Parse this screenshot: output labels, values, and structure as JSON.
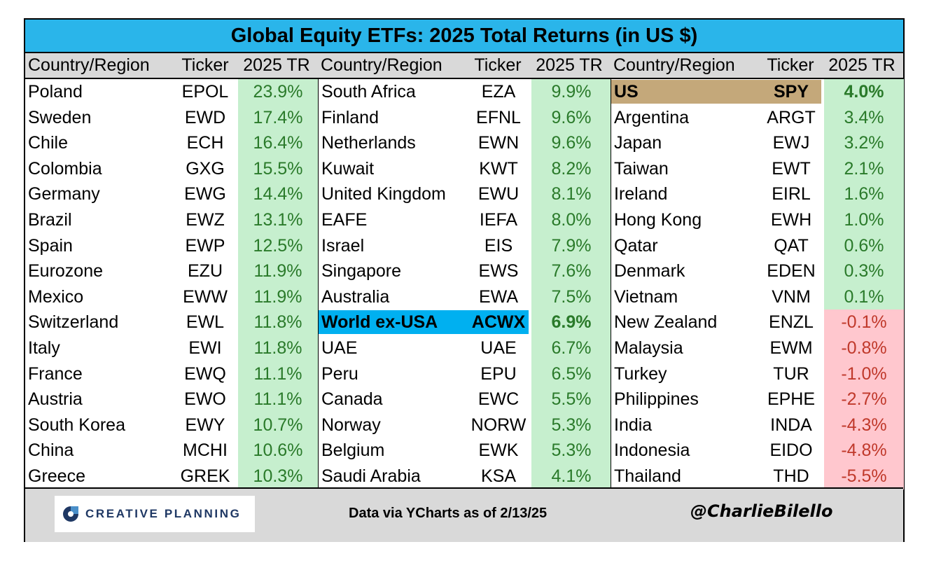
{
  "title": "Global Equity ETFs: 2025 Total Returns (in US $)",
  "headers": [
    "Country/Region",
    "Ticker",
    "2025 TR"
  ],
  "colors": {
    "title_bg": "#2ab5ea",
    "header_bg": "#d9d9d9",
    "positive_fill": "#c6efce",
    "positive_text": "#2a7a2a",
    "negative_fill": "#ffc7ce",
    "negative_text": "#c0392b",
    "us_highlight": "#c4a87a",
    "world_highlight": "#00b0f0"
  },
  "chart_data": {
    "type": "table",
    "columns": [
      "Country/Region",
      "Ticker",
      "2025 TR"
    ],
    "panels": [
      [
        {
          "country": "Poland",
          "ticker": "EPOL",
          "tr": "23.9%",
          "value": 23.9
        },
        {
          "country": "Sweden",
          "ticker": "EWD",
          "tr": "17.4%",
          "value": 17.4
        },
        {
          "country": "Chile",
          "ticker": "ECH",
          "tr": "16.4%",
          "value": 16.4
        },
        {
          "country": "Colombia",
          "ticker": "GXG",
          "tr": "15.5%",
          "value": 15.5
        },
        {
          "country": "Germany",
          "ticker": "EWG",
          "tr": "14.4%",
          "value": 14.4
        },
        {
          "country": "Brazil",
          "ticker": "EWZ",
          "tr": "13.1%",
          "value": 13.1
        },
        {
          "country": "Spain",
          "ticker": "EWP",
          "tr": "12.5%",
          "value": 12.5
        },
        {
          "country": "Eurozone",
          "ticker": "EZU",
          "tr": "11.9%",
          "value": 11.9
        },
        {
          "country": "Mexico",
          "ticker": "EWW",
          "tr": "11.9%",
          "value": 11.9
        },
        {
          "country": "Switzerland",
          "ticker": "EWL",
          "tr": "11.8%",
          "value": 11.8
        },
        {
          "country": "Italy",
          "ticker": "EWI",
          "tr": "11.8%",
          "value": 11.8
        },
        {
          "country": "France",
          "ticker": "EWQ",
          "tr": "11.1%",
          "value": 11.1
        },
        {
          "country": "Austria",
          "ticker": "EWO",
          "tr": "11.1%",
          "value": 11.1
        },
        {
          "country": "South Korea",
          "ticker": "EWY",
          "tr": "10.7%",
          "value": 10.7
        },
        {
          "country": "China",
          "ticker": "MCHI",
          "tr": "10.6%",
          "value": 10.6
        },
        {
          "country": "Greece",
          "ticker": "GREK",
          "tr": "10.3%",
          "value": 10.3
        }
      ],
      [
        {
          "country": "South Africa",
          "ticker": "EZA",
          "tr": "9.9%",
          "value": 9.9
        },
        {
          "country": "Finland",
          "ticker": "EFNL",
          "tr": "9.6%",
          "value": 9.6
        },
        {
          "country": "Netherlands",
          "ticker": "EWN",
          "tr": "9.6%",
          "value": 9.6
        },
        {
          "country": "Kuwait",
          "ticker": "KWT",
          "tr": "8.2%",
          "value": 8.2
        },
        {
          "country": "United Kingdom",
          "ticker": "EWU",
          "tr": "8.1%",
          "value": 8.1
        },
        {
          "country": "EAFE",
          "ticker": "IEFA",
          "tr": "8.0%",
          "value": 8.0
        },
        {
          "country": "Israel",
          "ticker": "EIS",
          "tr": "7.9%",
          "value": 7.9
        },
        {
          "country": "Singapore",
          "ticker": "EWS",
          "tr": "7.6%",
          "value": 7.6
        },
        {
          "country": "Australia",
          "ticker": "EWA",
          "tr": "7.5%",
          "value": 7.5
        },
        {
          "country": "World ex-USA",
          "ticker": "ACWX",
          "tr": "6.9%",
          "value": 6.9,
          "highlight": "world"
        },
        {
          "country": "UAE",
          "ticker": "UAE",
          "tr": "6.7%",
          "value": 6.7
        },
        {
          "country": "Peru",
          "ticker": "EPU",
          "tr": "6.5%",
          "value": 6.5
        },
        {
          "country": "Canada",
          "ticker": "EWC",
          "tr": "5.5%",
          "value": 5.5
        },
        {
          "country": "Norway",
          "ticker": "NORW",
          "tr": "5.3%",
          "value": 5.3
        },
        {
          "country": "Belgium",
          "ticker": "EWK",
          "tr": "5.3%",
          "value": 5.3
        },
        {
          "country": "Saudi Arabia",
          "ticker": "KSA",
          "tr": "4.1%",
          "value": 4.1
        }
      ],
      [
        {
          "country": "US",
          "ticker": "SPY",
          "tr": "4.0%",
          "value": 4.0,
          "highlight": "us"
        },
        {
          "country": "Argentina",
          "ticker": "ARGT",
          "tr": "3.4%",
          "value": 3.4
        },
        {
          "country": "Japan",
          "ticker": "EWJ",
          "tr": "3.2%",
          "value": 3.2
        },
        {
          "country": "Taiwan",
          "ticker": "EWT",
          "tr": "2.1%",
          "value": 2.1
        },
        {
          "country": "Ireland",
          "ticker": "EIRL",
          "tr": "1.6%",
          "value": 1.6
        },
        {
          "country": "Hong Kong",
          "ticker": "EWH",
          "tr": "1.0%",
          "value": 1.0
        },
        {
          "country": "Qatar",
          "ticker": "QAT",
          "tr": "0.6%",
          "value": 0.6
        },
        {
          "country": "Denmark",
          "ticker": "EDEN",
          "tr": "0.3%",
          "value": 0.3
        },
        {
          "country": "Vietnam",
          "ticker": "VNM",
          "tr": "0.1%",
          "value": 0.1
        },
        {
          "country": "New Zealand",
          "ticker": "ENZL",
          "tr": "-0.1%",
          "value": -0.1
        },
        {
          "country": "Malaysia",
          "ticker": "EWM",
          "tr": "-0.8%",
          "value": -0.8
        },
        {
          "country": "Turkey",
          "ticker": "TUR",
          "tr": "-1.0%",
          "value": -1.0
        },
        {
          "country": "Philippines",
          "ticker": "EPHE",
          "tr": "-2.7%",
          "value": -2.7
        },
        {
          "country": "India",
          "ticker": "INDA",
          "tr": "-4.3%",
          "value": -4.3
        },
        {
          "country": "Indonesia",
          "ticker": "EIDO",
          "tr": "-4.8%",
          "value": -4.8
        },
        {
          "country": "Thailand",
          "ticker": "THD",
          "tr": "-5.5%",
          "value": -5.5
        }
      ]
    ]
  },
  "footer": {
    "logo_text": "CREATIVE PLANNING",
    "logo_icon": "creative-planning-logo-icon",
    "source": "Data via YCharts as of 2/13/25",
    "handle": "@CharlieBilello"
  }
}
